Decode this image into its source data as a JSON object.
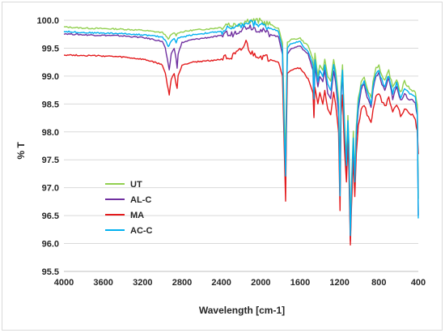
{
  "chart_data": {
    "type": "line",
    "xlabel": "Wavelength [cm-1]",
    "ylabel": "% T",
    "xlim": [
      4000,
      400
    ],
    "ylim": [
      95.5,
      100.0
    ],
    "x_reversed": true,
    "x_ticks": [
      4000,
      3600,
      3200,
      2800,
      2400,
      2000,
      1600,
      1200,
      800,
      400
    ],
    "y_ticks": [
      "95.5",
      "96.0",
      "96.5",
      "97.0",
      "97.5",
      "98.0",
      "98.5",
      "99.0",
      "99.5",
      "100.0"
    ],
    "grid": "horizontal",
    "legend_position": "lower-left",
    "series": [
      {
        "name": "UT",
        "color": "#92d050",
        "points": [
          [
            4000,
            99.88
          ],
          [
            3800,
            99.86
          ],
          [
            3600,
            99.85
          ],
          [
            3400,
            99.84
          ],
          [
            3200,
            99.82
          ],
          [
            3100,
            99.8
          ],
          [
            3000,
            99.78
          ],
          [
            2960,
            99.72
          ],
          [
            2940,
            99.65
          ],
          [
            2920,
            99.72
          ],
          [
            2880,
            99.78
          ],
          [
            2860,
            99.73
          ],
          [
            2840,
            99.78
          ],
          [
            2700,
            99.82
          ],
          [
            2500,
            99.85
          ],
          [
            2380,
            99.88
          ],
          [
            2340,
            99.95
          ],
          [
            2300,
            99.9
          ],
          [
            2200,
            99.96
          ],
          [
            2120,
            100.0
          ],
          [
            2000,
            99.98
          ],
          [
            1900,
            99.92
          ],
          [
            1820,
            99.85
          ],
          [
            1780,
            99.6
          ],
          [
            1760,
            98.2
          ],
          [
            1748,
            97.5
          ],
          [
            1740,
            98.6
          ],
          [
            1730,
            99.6
          ],
          [
            1700,
            99.65
          ],
          [
            1600,
            99.68
          ],
          [
            1560,
            99.6
          ],
          [
            1520,
            99.55
          ],
          [
            1470,
            99.3
          ],
          [
            1460,
            99.0
          ],
          [
            1450,
            99.4
          ],
          [
            1420,
            99.0
          ],
          [
            1400,
            99.2
          ],
          [
            1370,
            99.1
          ],
          [
            1350,
            99.3
          ],
          [
            1320,
            99.0
          ],
          [
            1290,
            98.9
          ],
          [
            1260,
            99.3
          ],
          [
            1240,
            99.1
          ],
          [
            1210,
            98.6
          ],
          [
            1195,
            97.0
          ],
          [
            1185,
            98.8
          ],
          [
            1170,
            99.2
          ],
          [
            1150,
            98.2
          ],
          [
            1130,
            97.5
          ],
          [
            1115,
            98.3
          ],
          [
            1105,
            97.8
          ],
          [
            1090,
            96.3
          ],
          [
            1080,
            97.0
          ],
          [
            1060,
            98.0
          ],
          [
            1045,
            97.2
          ],
          [
            1030,
            98.1
          ],
          [
            1010,
            98.6
          ],
          [
            980,
            98.9
          ],
          [
            950,
            99.0
          ],
          [
            920,
            98.8
          ],
          [
            880,
            98.6
          ],
          [
            860,
            98.9
          ],
          [
            830,
            99.15
          ],
          [
            800,
            99.2
          ],
          [
            770,
            99.0
          ],
          [
            740,
            98.9
          ],
          [
            700,
            99.1
          ],
          [
            660,
            98.8
          ],
          [
            620,
            98.95
          ],
          [
            580,
            98.7
          ],
          [
            540,
            98.9
          ],
          [
            500,
            98.8
          ],
          [
            460,
            98.75
          ],
          [
            430,
            98.7
          ],
          [
            410,
            98.5
          ],
          [
            400,
            96.8
          ]
        ]
      },
      {
        "name": "AL-C",
        "color": "#7030a0",
        "points": [
          [
            4000,
            99.76
          ],
          [
            3800,
            99.74
          ],
          [
            3600,
            99.73
          ],
          [
            3400,
            99.72
          ],
          [
            3200,
            99.69
          ],
          [
            3100,
            99.66
          ],
          [
            3000,
            99.62
          ],
          [
            2970,
            99.5
          ],
          [
            2950,
            99.3
          ],
          [
            2930,
            99.1
          ],
          [
            2910,
            99.4
          ],
          [
            2880,
            99.5
          ],
          [
            2860,
            99.3
          ],
          [
            2850,
            99.15
          ],
          [
            2840,
            99.4
          ],
          [
            2800,
            99.6
          ],
          [
            2700,
            99.65
          ],
          [
            2500,
            99.7
          ],
          [
            2400,
            99.72
          ],
          [
            2360,
            99.8
          ],
          [
            2320,
            99.72
          ],
          [
            2200,
            99.85
          ],
          [
            2120,
            99.9
          ],
          [
            2000,
            99.82
          ],
          [
            1900,
            99.75
          ],
          [
            1820,
            99.7
          ],
          [
            1780,
            99.4
          ],
          [
            1760,
            97.8
          ],
          [
            1748,
            97.05
          ],
          [
            1740,
            98.3
          ],
          [
            1730,
            99.4
          ],
          [
            1700,
            99.48
          ],
          [
            1600,
            99.55
          ],
          [
            1560,
            99.45
          ],
          [
            1520,
            99.4
          ],
          [
            1470,
            99.1
          ],
          [
            1460,
            98.3
          ],
          [
            1450,
            99.2
          ],
          [
            1420,
            98.8
          ],
          [
            1400,
            99.0
          ],
          [
            1370,
            98.9
          ],
          [
            1350,
            99.1
          ],
          [
            1320,
            98.7
          ],
          [
            1290,
            98.6
          ],
          [
            1260,
            99.1
          ],
          [
            1240,
            98.9
          ],
          [
            1210,
            98.3
          ],
          [
            1195,
            96.8
          ],
          [
            1185,
            98.6
          ],
          [
            1170,
            99.05
          ],
          [
            1150,
            98.0
          ],
          [
            1130,
            97.3
          ],
          [
            1115,
            98.1
          ],
          [
            1105,
            97.6
          ],
          [
            1090,
            96.05
          ],
          [
            1080,
            96.8
          ],
          [
            1060,
            97.8
          ],
          [
            1045,
            97.0
          ],
          [
            1030,
            97.9
          ],
          [
            1010,
            98.4
          ],
          [
            980,
            98.75
          ],
          [
            950,
            98.85
          ],
          [
            920,
            98.6
          ],
          [
            880,
            98.45
          ],
          [
            860,
            98.75
          ],
          [
            830,
            99.0
          ],
          [
            800,
            99.05
          ],
          [
            770,
            98.85
          ],
          [
            740,
            98.75
          ],
          [
            700,
            98.95
          ],
          [
            660,
            98.6
          ],
          [
            620,
            98.8
          ],
          [
            580,
            98.55
          ],
          [
            540,
            98.7
          ],
          [
            500,
            98.6
          ],
          [
            460,
            98.55
          ],
          [
            430,
            98.5
          ],
          [
            410,
            98.3
          ],
          [
            400,
            96.5
          ]
        ]
      },
      {
        "name": "MA",
        "color": "#e31a1c",
        "points": [
          [
            4000,
            99.38
          ],
          [
            3800,
            99.37
          ],
          [
            3600,
            99.36
          ],
          [
            3400,
            99.34
          ],
          [
            3200,
            99.3
          ],
          [
            3100,
            99.26
          ],
          [
            3000,
            99.2
          ],
          [
            2970,
            99.05
          ],
          [
            2950,
            98.85
          ],
          [
            2930,
            98.66
          ],
          [
            2910,
            98.95
          ],
          [
            2880,
            99.05
          ],
          [
            2860,
            98.85
          ],
          [
            2850,
            98.78
          ],
          [
            2840,
            99.0
          ],
          [
            2800,
            99.2
          ],
          [
            2700,
            99.25
          ],
          [
            2500,
            99.28
          ],
          [
            2400,
            99.3
          ],
          [
            2360,
            99.4
          ],
          [
            2320,
            99.3
          ],
          [
            2200,
            99.45
          ],
          [
            2150,
            99.6
          ],
          [
            2100,
            99.4
          ],
          [
            2000,
            99.35
          ],
          [
            1900,
            99.3
          ],
          [
            1820,
            99.25
          ],
          [
            1780,
            99.0
          ],
          [
            1760,
            97.6
          ],
          [
            1748,
            96.75
          ],
          [
            1740,
            98.0
          ],
          [
            1730,
            99.05
          ],
          [
            1700,
            99.1
          ],
          [
            1600,
            99.15
          ],
          [
            1560,
            99.05
          ],
          [
            1520,
            98.95
          ],
          [
            1470,
            98.7
          ],
          [
            1460,
            98.25
          ],
          [
            1450,
            98.8
          ],
          [
            1420,
            98.5
          ],
          [
            1400,
            98.7
          ],
          [
            1370,
            98.5
          ],
          [
            1350,
            98.75
          ],
          [
            1320,
            98.4
          ],
          [
            1290,
            98.3
          ],
          [
            1260,
            98.7
          ],
          [
            1240,
            98.5
          ],
          [
            1210,
            98.0
          ],
          [
            1195,
            96.6
          ],
          [
            1185,
            98.3
          ],
          [
            1170,
            98.65
          ],
          [
            1150,
            97.7
          ],
          [
            1130,
            97.1
          ],
          [
            1115,
            97.8
          ],
          [
            1105,
            97.3
          ],
          [
            1090,
            95.98
          ],
          [
            1080,
            96.6
          ],
          [
            1060,
            97.5
          ],
          [
            1045,
            96.85
          ],
          [
            1030,
            97.6
          ],
          [
            1010,
            98.1
          ],
          [
            980,
            98.4
          ],
          [
            950,
            98.5
          ],
          [
            920,
            98.3
          ],
          [
            880,
            98.15
          ],
          [
            860,
            98.4
          ],
          [
            830,
            98.65
          ],
          [
            800,
            98.7
          ],
          [
            770,
            98.55
          ],
          [
            740,
            98.45
          ],
          [
            700,
            98.6
          ],
          [
            660,
            98.35
          ],
          [
            620,
            98.5
          ],
          [
            580,
            98.3
          ],
          [
            540,
            98.4
          ],
          [
            500,
            98.35
          ],
          [
            460,
            98.3
          ],
          [
            430,
            98.2
          ],
          [
            410,
            98.0
          ],
          [
            400,
            97.6
          ]
        ]
      },
      {
        "name": "AC-C",
        "color": "#00b0f0",
        "points": [
          [
            4000,
            99.8
          ],
          [
            3800,
            99.78
          ],
          [
            3600,
            99.77
          ],
          [
            3400,
            99.76
          ],
          [
            3200,
            99.74
          ],
          [
            3100,
            99.72
          ],
          [
            3000,
            99.7
          ],
          [
            2960,
            99.62
          ],
          [
            2940,
            99.52
          ],
          [
            2920,
            99.6
          ],
          [
            2880,
            99.68
          ],
          [
            2860,
            99.6
          ],
          [
            2840,
            99.68
          ],
          [
            2700,
            99.74
          ],
          [
            2500,
            99.78
          ],
          [
            2380,
            99.8
          ],
          [
            2340,
            99.9
          ],
          [
            2300,
            99.82
          ],
          [
            2200,
            99.9
          ],
          [
            2120,
            99.96
          ],
          [
            2000,
            99.92
          ],
          [
            1900,
            99.86
          ],
          [
            1820,
            99.8
          ],
          [
            1780,
            99.5
          ],
          [
            1760,
            97.9
          ],
          [
            1748,
            97.2
          ],
          [
            1740,
            98.4
          ],
          [
            1730,
            99.5
          ],
          [
            1700,
            99.58
          ],
          [
            1600,
            99.62
          ],
          [
            1560,
            99.5
          ],
          [
            1520,
            99.45
          ],
          [
            1470,
            99.2
          ],
          [
            1460,
            98.6
          ],
          [
            1450,
            99.3
          ],
          [
            1420,
            98.9
          ],
          [
            1400,
            99.1
          ],
          [
            1370,
            99.0
          ],
          [
            1350,
            99.2
          ],
          [
            1320,
            98.85
          ],
          [
            1290,
            98.75
          ],
          [
            1260,
            99.2
          ],
          [
            1240,
            99.0
          ],
          [
            1210,
            98.45
          ],
          [
            1195,
            96.85
          ],
          [
            1185,
            98.7
          ],
          [
            1170,
            99.1
          ],
          [
            1150,
            98.1
          ],
          [
            1130,
            97.4
          ],
          [
            1115,
            98.2
          ],
          [
            1105,
            97.7
          ],
          [
            1090,
            96.15
          ],
          [
            1080,
            96.9
          ],
          [
            1060,
            97.9
          ],
          [
            1045,
            97.1
          ],
          [
            1030,
            98.0
          ],
          [
            1010,
            98.5
          ],
          [
            980,
            98.82
          ],
          [
            950,
            98.92
          ],
          [
            920,
            98.7
          ],
          [
            880,
            98.5
          ],
          [
            860,
            98.82
          ],
          [
            830,
            99.05
          ],
          [
            800,
            99.1
          ],
          [
            770,
            98.92
          ],
          [
            740,
            98.82
          ],
          [
            700,
            99.02
          ],
          [
            660,
            98.7
          ],
          [
            620,
            98.88
          ],
          [
            580,
            98.62
          ],
          [
            540,
            98.8
          ],
          [
            500,
            98.7
          ],
          [
            460,
            98.65
          ],
          [
            430,
            98.6
          ],
          [
            410,
            98.35
          ],
          [
            400,
            96.45
          ]
        ]
      }
    ]
  }
}
